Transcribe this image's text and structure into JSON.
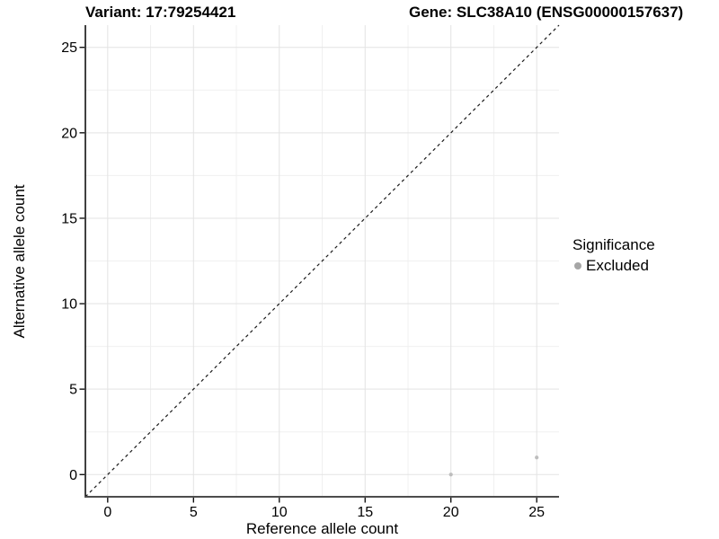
{
  "header": {
    "variant_title": "Variant: 17:79254421",
    "gene_title": "Gene: SLC38A10 (ENSG00000157637)"
  },
  "chart_data": {
    "type": "scatter",
    "xlabel": "Reference allele count",
    "ylabel": "Alternative allele count",
    "xlim": [
      -1.3,
      26.3
    ],
    "ylim": [
      -1.3,
      26.3
    ],
    "x_ticks": [
      0,
      5,
      10,
      15,
      20,
      25
    ],
    "y_ticks": [
      0,
      5,
      10,
      15,
      20,
      25
    ],
    "x_minor": [
      2.5,
      7.5,
      12.5,
      17.5,
      22.5
    ],
    "y_minor": [
      2.5,
      7.5,
      12.5,
      17.5,
      22.5
    ],
    "grid": true,
    "points": [
      {
        "x": 20,
        "y": 0,
        "series": "Excluded"
      },
      {
        "x": 25,
        "y": 1,
        "series": "Excluded"
      }
    ],
    "point_radius": 2.1,
    "reference_line": {
      "type": "abline",
      "slope": 1,
      "intercept": 0,
      "style": "dashed"
    },
    "legend": {
      "title": "Significance",
      "position": "right",
      "entries": [
        {
          "label": "Excluded"
        }
      ]
    }
  },
  "colors": {
    "background": "#ffffff",
    "grid_major": "#e3e3e3",
    "grid_minor": "#f0f0f0",
    "axis_line_y": "#000000",
    "axis_line_x": "#4d4d4d",
    "tick_mark": "#000000",
    "tick_label": "#000000",
    "abline": "#1a1a1a",
    "point": "#bdbdbd",
    "legend_dot": "#a6a6a6"
  }
}
